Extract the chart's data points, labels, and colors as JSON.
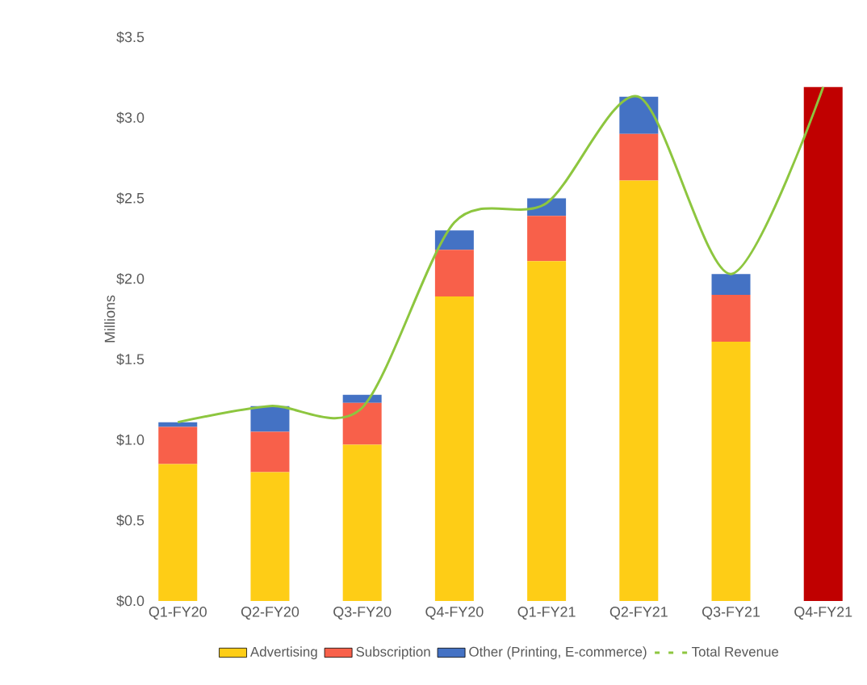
{
  "chart_data": {
    "type": "bar",
    "stacked": true,
    "ylabel": "Millions",
    "categories": [
      "Q1-FY20",
      "Q2-FY20",
      "Q3-FY20",
      "Q4-FY20",
      "Q1-FY21",
      "Q2-FY21",
      "Q3-FY21",
      "Q4-FY21"
    ],
    "series": [
      {
        "name": "Advertising",
        "color": "#fecd16",
        "values": [
          0.85,
          0.8,
          0.97,
          1.89,
          2.11,
          2.61,
          1.61,
          null
        ]
      },
      {
        "name": "Subscription",
        "color": "#f8604a",
        "values": [
          0.23,
          0.25,
          0.26,
          0.29,
          0.28,
          0.29,
          0.29,
          null
        ]
      },
      {
        "name": "Other (Printing, E-commerce)",
        "color": "#4472c4",
        "values": [
          0.03,
          0.16,
          0.05,
          0.12,
          0.11,
          0.23,
          0.13,
          null
        ]
      },
      {
        "color": "#c00000",
        "values": [
          null,
          null,
          null,
          null,
          null,
          null,
          null,
          3.19
        ]
      },
      {
        "name": "Total Revenue",
        "type": "line",
        "color": "#8dc63f",
        "values": [
          1.11,
          1.21,
          1.2,
          2.35,
          2.47,
          3.13,
          2.03,
          3.19
        ]
      }
    ],
    "ylim": [
      0,
      3.5
    ],
    "yticks": [
      {
        "value": 0,
        "label": "$0.0"
      },
      {
        "value": 0.5,
        "label": "$0.5"
      },
      {
        "value": 1,
        "label": "$1.0"
      },
      {
        "value": 1.5,
        "label": "$1.5"
      },
      {
        "value": 2,
        "label": "$2.0"
      },
      {
        "value": 2.5,
        "label": "$2.5"
      },
      {
        "value": 3,
        "label": "$3.0"
      },
      {
        "value": 3.5,
        "label": "$3.5"
      }
    ],
    "legend": "bottom",
    "grid": false,
    "marker": "none"
  }
}
